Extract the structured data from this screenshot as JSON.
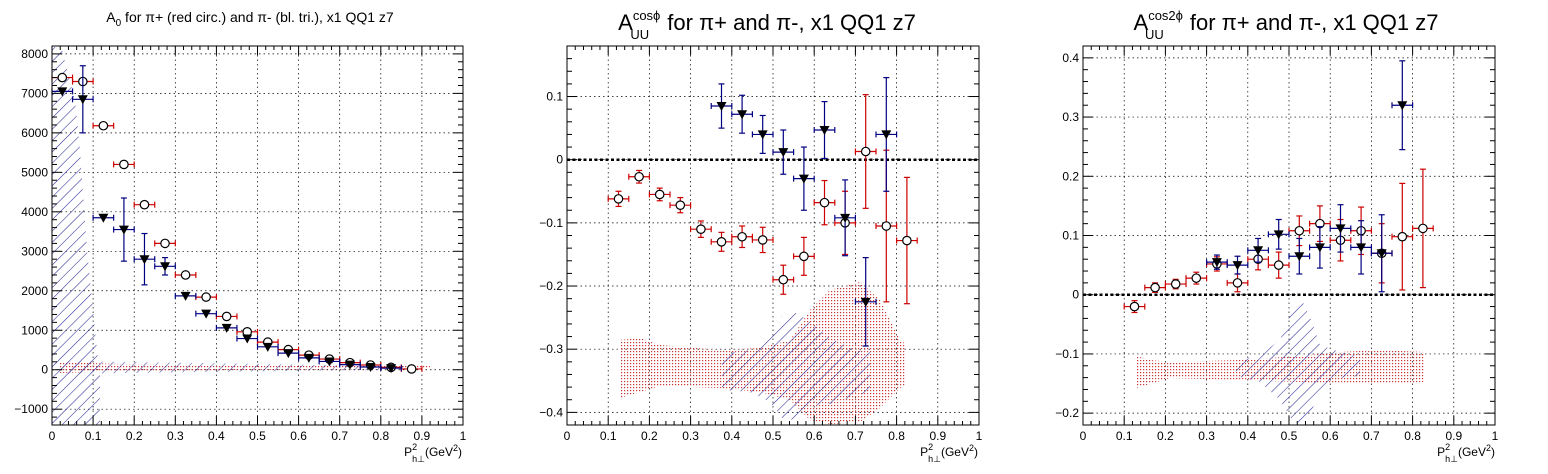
{
  "colors": {
    "pi_plus": "#cc0000",
    "pi_minus": "#000080",
    "sys_plus": "#cc3333",
    "sys_minus": "#2a2a99",
    "zero_line": "#000000"
  },
  "panels": [
    {
      "id": "a0",
      "title_main": "A",
      "title_sub": "0",
      "title_sup": "",
      "title_rest": " for π+ (red circ.) and π- (bl. tri.), x1 QQ1 z7",
      "xlabel_main": "P",
      "xlabel_sup": "2",
      "xlabel_sub": "h⊥",
      "xlabel_unit": "(GeV",
      "xlabel_unit_sup": "2",
      "xlabel_end": ")"
    },
    {
      "id": "cos",
      "title_main": "A",
      "title_sub": "UU",
      "title_sup": "cosϕ",
      "title_rest": " for π+ and π-, x1 QQ1 z7",
      "xlabel_main": "P",
      "xlabel_sup": "2",
      "xlabel_sub": "h⊥",
      "xlabel_unit": "(GeV",
      "xlabel_unit_sup": "2",
      "xlabel_end": ")"
    },
    {
      "id": "cos2",
      "title_main": "A",
      "title_sub": "UU",
      "title_sup": "cos2ϕ",
      "title_rest": " for π+ and π-, x1 QQ1 z7",
      "xlabel_main": "P",
      "xlabel_sup": "2",
      "xlabel_sub": "h⊥",
      "xlabel_unit": "(GeV",
      "xlabel_unit_sup": "2",
      "xlabel_end": ")"
    }
  ],
  "chart_data": [
    {
      "type": "scatter",
      "title": "A_0 for π+ (red circ.) and π- (bl. tri.), x1 QQ1 z7",
      "xlabel": "P²_h⊥(GeV²)",
      "ylabel": "",
      "xlim": [
        0,
        1
      ],
      "ylim": [
        -1400,
        8200
      ],
      "grid": true,
      "xticks": [
        0,
        0.1,
        0.2,
        0.3,
        0.4,
        0.5,
        0.6,
        0.7,
        0.8,
        0.9,
        1
      ],
      "xtick_labels": [
        "0",
        "0.1",
        "0.2",
        "0.3",
        "0.4",
        "0.5",
        "0.6",
        "0.7",
        "0.8",
        "0.9",
        "1"
      ],
      "yticks": [
        -1000,
        0,
        1000,
        2000,
        3000,
        4000,
        5000,
        6000,
        7000,
        8000
      ],
      "ytick_labels": [
        "−1000",
        "0",
        "1000",
        "2000",
        "3000",
        "4000",
        "5000",
        "6000",
        "7000",
        "8000"
      ],
      "series": [
        {
          "name": "π+",
          "marker": "circle",
          "x": [
            0.025,
            0.075,
            0.125,
            0.175,
            0.225,
            0.275,
            0.325,
            0.375,
            0.425,
            0.475,
            0.525,
            0.575,
            0.625,
            0.675,
            0.725,
            0.775,
            0.825,
            0.875
          ],
          "y": [
            7400,
            7300,
            6180,
            5200,
            4180,
            3200,
            2400,
            1840,
            1350,
            960,
            700,
            510,
            370,
            270,
            180,
            120,
            60,
            20
          ],
          "yerr": [
            0,
            0,
            0,
            0,
            0,
            0,
            0,
            0,
            0,
            0,
            0,
            0,
            0,
            0,
            0,
            0,
            0,
            0
          ]
        },
        {
          "name": "π-",
          "marker": "triangle-down",
          "x": [
            0.025,
            0.075,
            0.125,
            0.175,
            0.225,
            0.275,
            0.325,
            0.375,
            0.425,
            0.475,
            0.525,
            0.575,
            0.625,
            0.675,
            0.725,
            0.775,
            0.825
          ],
          "y": [
            7050,
            6850,
            3850,
            3550,
            2800,
            2620,
            1870,
            1420,
            1060,
            790,
            580,
            420,
            300,
            210,
            130,
            70,
            40
          ],
          "yerr": [
            0,
            850,
            0,
            800,
            650,
            220,
            0,
            0,
            0,
            0,
            0,
            0,
            0,
            0,
            0,
            0,
            0
          ]
        }
      ]
    },
    {
      "type": "scatter",
      "title": "A_UU^cosϕ for π+ and π-, x1 QQ1 z7",
      "xlabel": "P²_h⊥(GeV²)",
      "ylabel": "",
      "xlim": [
        0,
        1
      ],
      "ylim": [
        -0.42,
        0.18
      ],
      "grid": true,
      "xticks": [
        0,
        0.1,
        0.2,
        0.3,
        0.4,
        0.5,
        0.6,
        0.7,
        0.8,
        0.9,
        1
      ],
      "xtick_labels": [
        "0",
        "0.1",
        "0.2",
        "0.3",
        "0.4",
        "0.5",
        "0.6",
        "0.7",
        "0.8",
        "0.9",
        "1"
      ],
      "yticks": [
        -0.4,
        -0.3,
        -0.2,
        -0.1,
        0,
        0.1
      ],
      "ytick_labels": [
        "−0.4",
        "−0.3",
        "−0.2",
        "−0.1",
        "0",
        "0.1"
      ],
      "series": [
        {
          "name": "π+",
          "marker": "circle",
          "x": [
            0.125,
            0.175,
            0.225,
            0.275,
            0.325,
            0.375,
            0.425,
            0.475,
            0.525,
            0.575,
            0.625,
            0.675,
            0.725,
            0.775,
            0.825
          ],
          "y": [
            -0.062,
            -0.027,
            -0.055,
            -0.072,
            -0.11,
            -0.13,
            -0.122,
            -0.127,
            -0.19,
            -0.153,
            -0.068,
            -0.1,
            0.013,
            -0.105,
            -0.128
          ],
          "yerr": [
            0.012,
            0.01,
            0.01,
            0.012,
            0.013,
            0.015,
            0.017,
            0.02,
            0.023,
            0.03,
            0.035,
            0.05,
            0.09,
            0.12,
            0.1
          ]
        },
        {
          "name": "π-",
          "marker": "triangle-down",
          "x": [
            0.375,
            0.425,
            0.475,
            0.525,
            0.575,
            0.625,
            0.675,
            0.725,
            0.775
          ],
          "y": [
            0.085,
            0.072,
            0.04,
            0.012,
            -0.03,
            0.047,
            -0.092,
            -0.225,
            0.04
          ],
          "yerr": [
            0.035,
            0.03,
            0.03,
            0.035,
            0.05,
            0.045,
            0.06,
            0.07,
            0.09
          ]
        }
      ]
    },
    {
      "type": "scatter",
      "title": "A_UU^cos2ϕ for π+ and π-, x1 QQ1 z7",
      "xlabel": "P²_h⊥(GeV²)",
      "ylabel": "",
      "xlim": [
        0,
        1
      ],
      "ylim": [
        -0.22,
        0.42
      ],
      "grid": true,
      "xticks": [
        0,
        0.1,
        0.2,
        0.3,
        0.4,
        0.5,
        0.6,
        0.7,
        0.8,
        0.9,
        1
      ],
      "xtick_labels": [
        "0",
        "0.1",
        "0.2",
        "0.3",
        "0.4",
        "0.5",
        "0.6",
        "0.7",
        "0.8",
        "0.9",
        "1"
      ],
      "yticks": [
        -0.2,
        -0.1,
        0,
        0.1,
        0.2,
        0.3,
        0.4
      ],
      "ytick_labels": [
        "−0.2",
        "−0.1",
        "0",
        "0.1",
        "0.2",
        "0.3",
        "0.4"
      ],
      "series": [
        {
          "name": "π+",
          "marker": "circle",
          "x": [
            0.125,
            0.175,
            0.225,
            0.275,
            0.325,
            0.375,
            0.425,
            0.475,
            0.525,
            0.575,
            0.625,
            0.675,
            0.725,
            0.775,
            0.825
          ],
          "y": [
            -0.02,
            0.012,
            0.018,
            0.028,
            0.052,
            0.02,
            0.06,
            0.05,
            0.108,
            0.12,
            0.092,
            0.108,
            0.07,
            0.098,
            0.112
          ],
          "yerr": [
            0.01,
            0.008,
            0.008,
            0.01,
            0.012,
            0.015,
            0.018,
            0.022,
            0.025,
            0.03,
            0.035,
            0.04,
            0.05,
            0.09,
            0.1
          ]
        },
        {
          "name": "π-",
          "marker": "triangle-down",
          "x": [
            0.325,
            0.375,
            0.425,
            0.475,
            0.525,
            0.575,
            0.625,
            0.675,
            0.725,
            0.775
          ],
          "y": [
            0.055,
            0.05,
            0.075,
            0.102,
            0.065,
            0.08,
            0.112,
            0.08,
            0.07,
            0.32
          ],
          "yerr": [
            0.012,
            0.015,
            0.02,
            0.025,
            0.03,
            0.035,
            0.04,
            0.045,
            0.065,
            0.075
          ]
        }
      ]
    }
  ]
}
